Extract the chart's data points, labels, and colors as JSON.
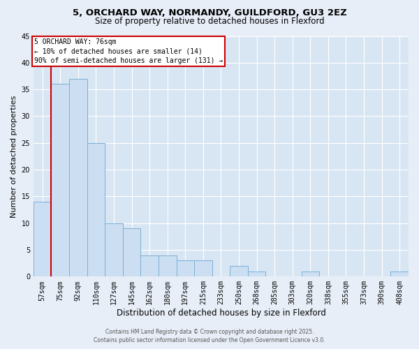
{
  "title_line1": "5, ORCHARD WAY, NORMANDY, GUILDFORD, GU3 2EZ",
  "title_line2": "Size of property relative to detached houses in Flexford",
  "xlabel": "Distribution of detached houses by size in Flexford",
  "ylabel": "Number of detached properties",
  "categories": [
    "57sqm",
    "75sqm",
    "92sqm",
    "110sqm",
    "127sqm",
    "145sqm",
    "162sqm",
    "180sqm",
    "197sqm",
    "215sqm",
    "233sqm",
    "250sqm",
    "268sqm",
    "285sqm",
    "303sqm",
    "320sqm",
    "338sqm",
    "355sqm",
    "373sqm",
    "390sqm",
    "408sqm"
  ],
  "values": [
    14,
    36,
    37,
    25,
    10,
    9,
    4,
    4,
    3,
    3,
    0,
    2,
    1,
    0,
    0,
    1,
    0,
    0,
    0,
    0,
    1
  ],
  "bar_color": "#ccdff2",
  "bar_edge_color": "#7bafd4",
  "annotation_title": "5 ORCHARD WAY: 76sqm",
  "annotation_line1": "← 10% of detached houses are smaller (14)",
  "annotation_line2": "90% of semi-detached houses are larger (131) →",
  "annotation_box_facecolor": "#ffffff",
  "annotation_box_edgecolor": "#cc0000",
  "red_line_color": "#cc0000",
  "ylim": [
    0,
    45
  ],
  "yticks": [
    0,
    5,
    10,
    15,
    20,
    25,
    30,
    35,
    40,
    45
  ],
  "fig_bg_color": "#e8eef8",
  "plot_bg_color": "#d8e6f4",
  "grid_color": "#ffffff",
  "footer_line1": "Contains HM Land Registry data © Crown copyright and database right 2025.",
  "footer_line2": "Contains public sector information licensed under the Open Government Licence v3.0."
}
